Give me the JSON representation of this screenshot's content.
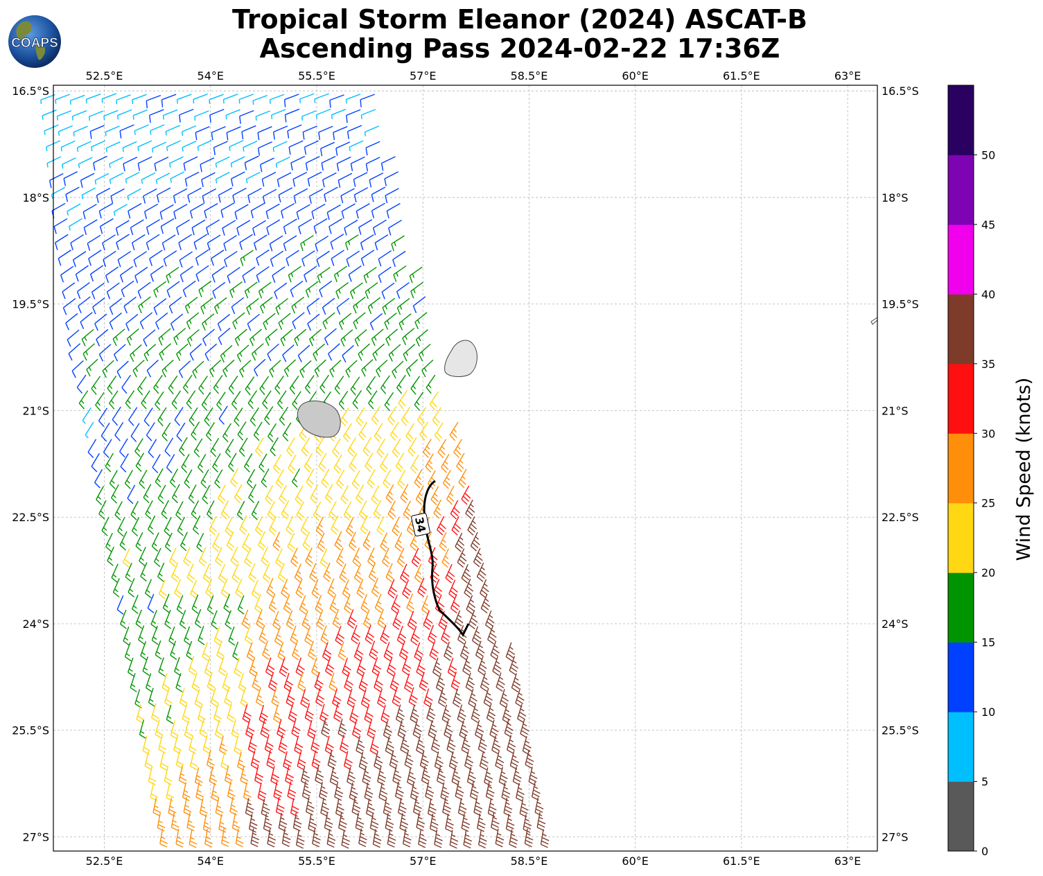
{
  "header": {
    "title_line1": "Tropical Storm Eleanor (2024) ASCAT-B",
    "title_line2": "Ascending Pass 2024-02-22 17:36Z",
    "logo_text": "COAPS"
  },
  "map": {
    "lon_ticks": [
      "52.5°E",
      "54°E",
      "55.5°E",
      "57°E",
      "58.5°E",
      "60°E",
      "61.5°E",
      "63°E"
    ],
    "lon_values": [
      52.5,
      54,
      55.5,
      57,
      58.5,
      60,
      61.5,
      63
    ],
    "lat_ticks": [
      "16.5°S",
      "18°S",
      "19.5°S",
      "21°S",
      "22.5°S",
      "24°S",
      "25.5°S",
      "27°S"
    ],
    "lat_values": [
      16.5,
      18,
      19.5,
      21,
      22.5,
      24,
      25.5,
      27
    ],
    "lon_range": [
      51.78,
      63.42
    ],
    "lat_range": [
      16.42,
      27.2
    ],
    "gridlines": true,
    "contour_label": "34",
    "wind_barb_colors_by_speed": "colorbar"
  },
  "colorbar": {
    "label": "Wind Speed (knots)",
    "ticks": [
      "0",
      "5",
      "10",
      "15",
      "20",
      "25",
      "30",
      "35",
      "40",
      "45",
      "50"
    ],
    "colors": [
      "#595959",
      "#00bfff",
      "#0040ff",
      "#009400",
      "#ffd712",
      "#ff8f0a",
      "#ff1010",
      "#7f3b2a",
      "#f000ec",
      "#7e03b2",
      "#2a0060"
    ]
  }
}
